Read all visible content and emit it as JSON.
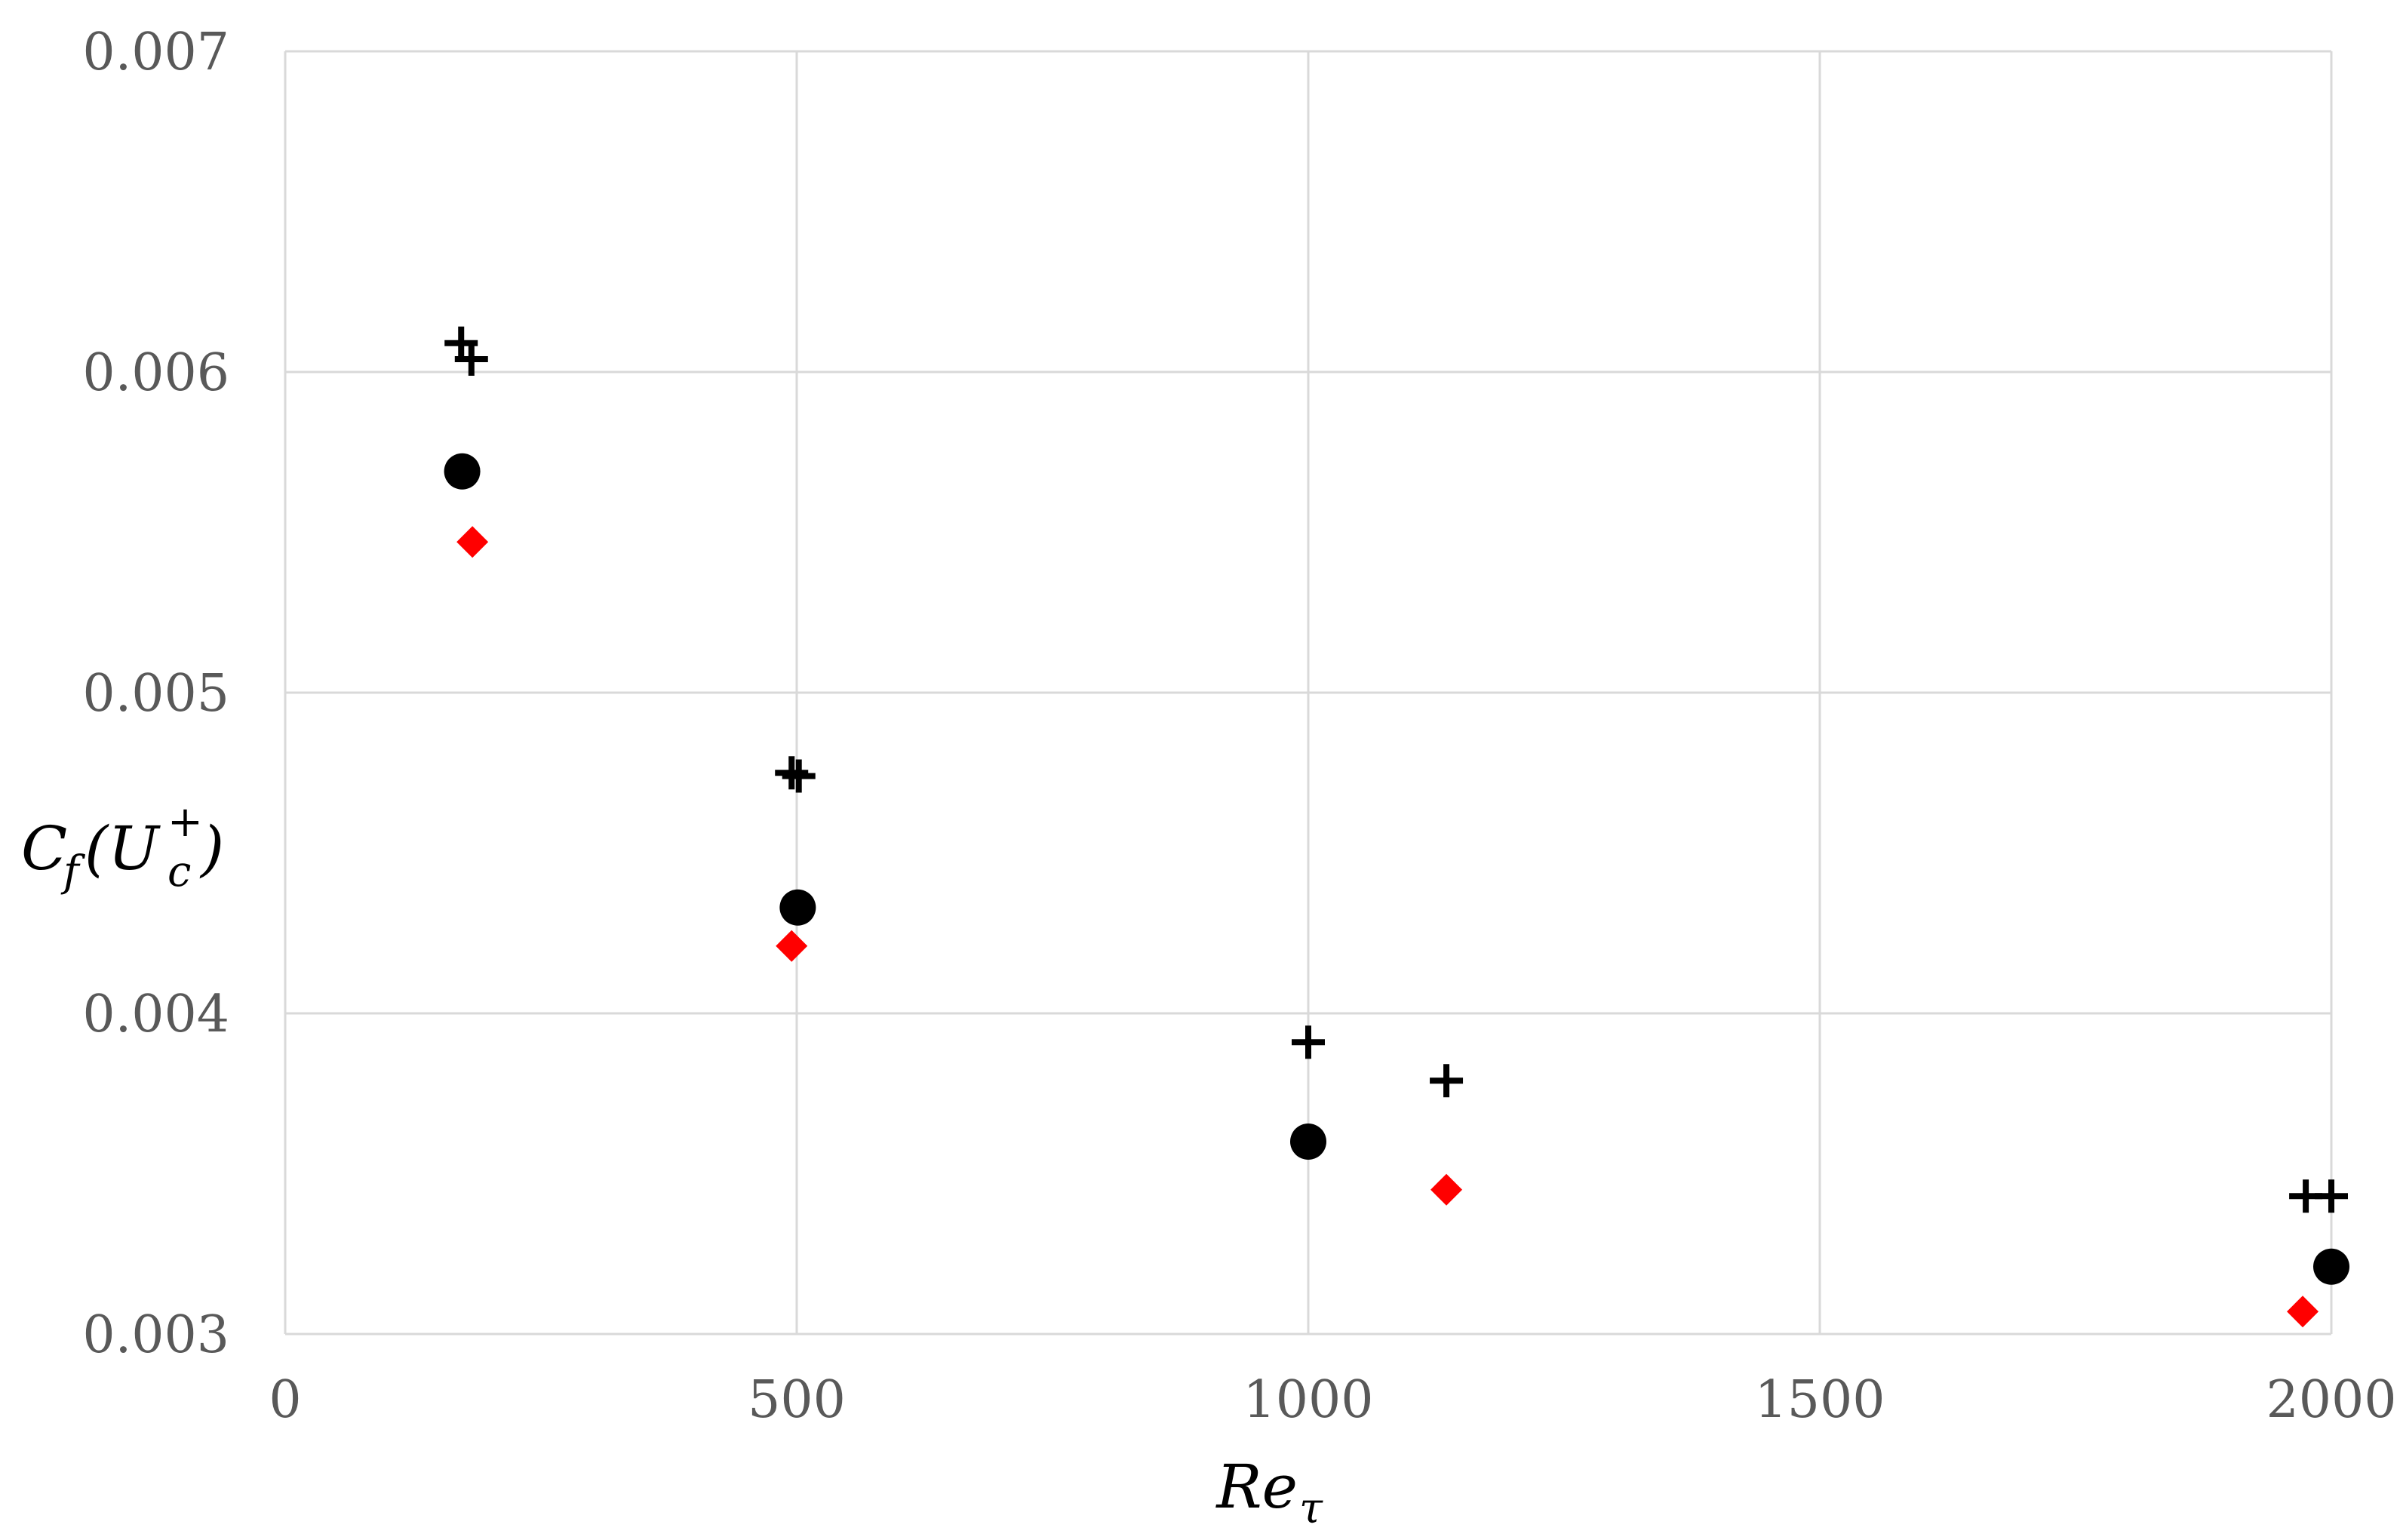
{
  "chart_data": {
    "type": "scatter",
    "title": "",
    "xlabel": "Re",
    "xlabel_sub": "τ",
    "ylabel_parts": {
      "main": "C",
      "sub_f": "f",
      "open": "(U",
      "sup": "+",
      "sub_c": "c",
      "close": ")"
    },
    "xlim": [
      0,
      2000
    ],
    "ylim": [
      0.003,
      0.007
    ],
    "xticks": [
      0,
      500,
      1000,
      1500,
      2000
    ],
    "xtick_labels": [
      "0",
      "500",
      "1000",
      "1500",
      "2000"
    ],
    "yticks": [
      0.003,
      0.004,
      0.005,
      0.006,
      0.007
    ],
    "ytick_labels": [
      "0.003",
      "0.004",
      "0.005",
      "0.006",
      "0.007"
    ],
    "grid": true,
    "legend": "none",
    "series": [
      {
        "marker": "plus",
        "color": "#000000",
        "points": [
          {
            "x": 172,
            "y": 0.00609
          },
          {
            "x": 182,
            "y": 0.00604
          },
          {
            "x": 495,
            "y": 0.00475
          },
          {
            "x": 502,
            "y": 0.00474
          },
          {
            "x": 1000,
            "y": 0.00391
          },
          {
            "x": 1135,
            "y": 0.00379
          },
          {
            "x": 1975,
            "y": 0.00343
          },
          {
            "x": 2000,
            "y": 0.00343
          }
        ]
      },
      {
        "marker": "circle",
        "color": "#000000",
        "points": [
          {
            "x": 173,
            "y": 0.00569
          },
          {
            "x": 501,
            "y": 0.00433
          },
          {
            "x": 1000,
            "y": 0.0036
          },
          {
            "x": 2000,
            "y": 0.00321
          }
        ]
      },
      {
        "marker": "diamond",
        "color": "#ff0000",
        "points": [
          {
            "x": 183,
            "y": 0.00547
          },
          {
            "x": 495,
            "y": 0.00421
          },
          {
            "x": 1135,
            "y": 0.00345
          },
          {
            "x": 1972,
            "y": 0.00307
          }
        ]
      }
    ],
    "colors": {
      "gridline": "#d9d9d9",
      "tick_text": "#595959",
      "label_text": "#000000"
    }
  }
}
